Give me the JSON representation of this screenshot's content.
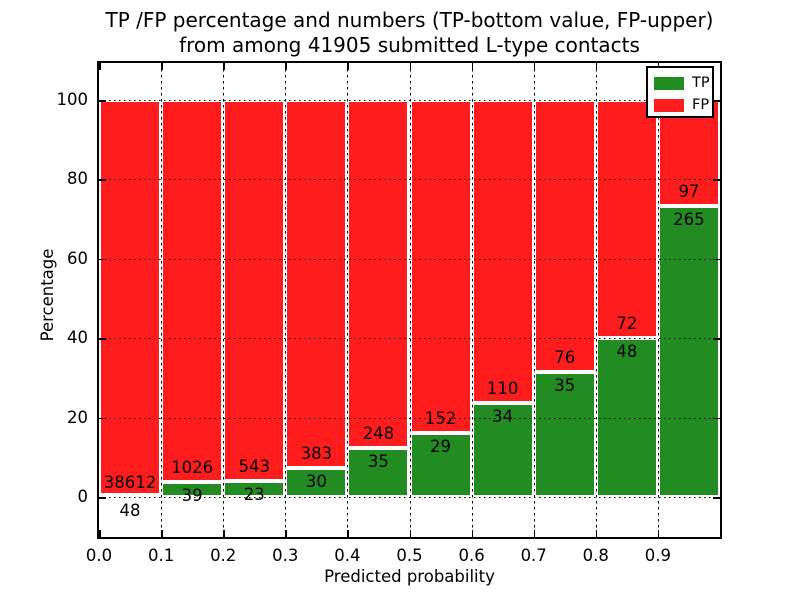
{
  "figure": {
    "title_line1": "TP /FP percentage and numbers (TP-bottom value, FP-upper)",
    "title_line2": "from among 41905 submitted L-type contacts"
  },
  "chart_data": {
    "type": "bar",
    "stacked": true,
    "title": "TP /FP percentage and numbers (TP-bottom value, FP-upper) from among 41905 submitted L-type contacts",
    "xlabel": "Predicted probability",
    "ylabel": "Percentage",
    "total_contacts": 41905,
    "bin_edges": [
      0.0,
      0.1,
      0.2,
      0.3,
      0.4,
      0.5,
      0.6,
      0.7,
      0.8,
      0.9,
      1.0
    ],
    "x_tick_labels": [
      "0.0",
      "0.1",
      "0.2",
      "0.3",
      "0.4",
      "0.5",
      "0.6",
      "0.7",
      "0.8",
      "0.9"
    ],
    "y_tick_labels": [
      "0",
      "20",
      "40",
      "60",
      "80",
      "100"
    ],
    "xlim": [
      0.0,
      1.0
    ],
    "ylim": [
      -11,
      110
    ],
    "grid": {
      "horizontal": "dotted",
      "vertical": "dashed"
    },
    "series": [
      {
        "name": "TP",
        "color": "#228b22",
        "counts": [
          48,
          39,
          23,
          30,
          35,
          29,
          34,
          35,
          48,
          265
        ]
      },
      {
        "name": "FP",
        "color": "#ff1c1c",
        "counts": [
          38612,
          1026,
          543,
          383,
          248,
          152,
          110,
          76,
          72,
          97
        ]
      }
    ],
    "tp_percent_heights": [
      0.12,
      3.66,
      4.06,
      7.26,
      12.37,
      16.02,
      23.61,
      31.53,
      40.0,
      73.2
    ],
    "legend": {
      "position": "upper right",
      "entries": [
        {
          "label": "TP",
          "color": "#228b22"
        },
        {
          "label": "FP",
          "color": "#ff1c1c"
        }
      ]
    }
  }
}
